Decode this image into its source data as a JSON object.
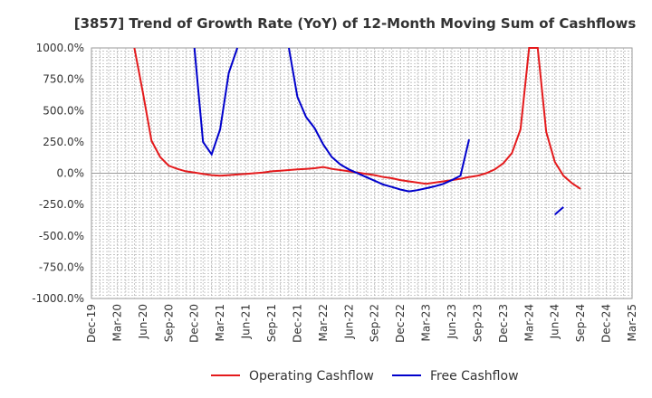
{
  "chart_data": {
    "type": "line",
    "title": "[3857]  Trend of Growth Rate (YoY) of 12-Month Moving Sum of Cashflows",
    "xlabel": "",
    "ylabel": "",
    "ylim": [
      -1000,
      1000
    ],
    "y_ticks": [
      "1000.0%",
      "750.0%",
      "500.0%",
      "250.0%",
      "0.0%",
      "-250.0%",
      "-500.0%",
      "-750.0%",
      "-1000.0%"
    ],
    "y_tick_values": [
      1000,
      750,
      500,
      250,
      0,
      -250,
      -500,
      -750,
      -1000
    ],
    "x_ticks": [
      "Dec-19",
      "Mar-20",
      "Jun-20",
      "Sep-20",
      "Dec-20",
      "Mar-21",
      "Jun-21",
      "Sep-21",
      "Dec-21",
      "Mar-22",
      "Jun-22",
      "Sep-22",
      "Dec-22",
      "Mar-23",
      "Jun-23",
      "Sep-23",
      "Dec-23",
      "Mar-24",
      "Jun-24",
      "Sep-24",
      "Dec-24",
      "Mar-25"
    ],
    "grid": true,
    "legend_position": "bottom",
    "series": [
      {
        "name": "Operating Cashflow",
        "color": "#e41a1c",
        "x": [
          "Dec-19",
          "Jan-20",
          "Feb-20",
          "Mar-20",
          "Apr-20",
          "May-20",
          "Jun-20",
          "Jul-20",
          "Aug-20",
          "Sep-20",
          "Oct-20",
          "Nov-20",
          "Dec-20",
          "Jan-21",
          "Feb-21",
          "Mar-21",
          "Apr-21",
          "May-21",
          "Jun-21",
          "Jul-21",
          "Aug-21",
          "Sep-21",
          "Oct-21",
          "Nov-21",
          "Dec-21",
          "Jan-22",
          "Feb-22",
          "Mar-22",
          "Apr-22",
          "May-22",
          "Jun-22",
          "Jul-22",
          "Aug-22",
          "Sep-22",
          "Oct-22",
          "Nov-22",
          "Dec-22",
          "Jan-23",
          "Feb-23",
          "Mar-23",
          "Apr-23",
          "May-23",
          "Jun-23",
          "Jul-23",
          "Aug-23",
          "Sep-23",
          "Oct-23",
          "Nov-23",
          "Dec-23",
          "Jan-24",
          "Feb-24",
          "Mar-24",
          "Apr-24",
          "May-24",
          "Jun-24",
          "Jul-24",
          "Aug-24",
          "Sep-24"
        ],
        "values": [
          null,
          null,
          null,
          null,
          null,
          1000,
          640,
          260,
          130,
          60,
          35,
          15,
          5,
          -5,
          -15,
          -20,
          -15,
          -10,
          -5,
          0,
          5,
          15,
          20,
          25,
          30,
          35,
          40,
          50,
          35,
          25,
          15,
          5,
          -5,
          -15,
          -30,
          -40,
          -55,
          -65,
          -75,
          -85,
          -75,
          -65,
          -55,
          -45,
          -30,
          -20,
          0,
          30,
          80,
          160,
          350,
          1000,
          1000,
          330,
          90,
          -20,
          -80,
          -125
        ],
        "segment_breaks_note": ""
      },
      {
        "name": "Free Cashflow",
        "color": "#0000cc",
        "x": [
          "Dec-19",
          "Jan-20",
          "Feb-20",
          "Mar-20",
          "Apr-20",
          "May-20",
          "Jun-20",
          "Jul-20",
          "Aug-20",
          "Sep-20",
          "Oct-20",
          "Nov-20",
          "Dec-20",
          "Jan-21",
          "Feb-21",
          "Mar-21",
          "Apr-21",
          "May-21",
          "Jun-21",
          "Jul-21",
          "Aug-21",
          "Sep-21",
          "Oct-21",
          "Nov-21",
          "Dec-21",
          "Jan-22",
          "Feb-22",
          "Mar-22",
          "Apr-22",
          "May-22",
          "Jun-22",
          "Jul-22",
          "Aug-22",
          "Sep-22",
          "Oct-22",
          "Nov-22",
          "Dec-22",
          "Jan-23",
          "Feb-23",
          "Mar-23",
          "Apr-23",
          "May-23",
          "Jun-23",
          "Jul-23",
          "Aug-23",
          "Sep-23",
          "Oct-23",
          "Nov-23",
          "Dec-23",
          "Jan-24",
          "Feb-24",
          "Mar-24",
          "Apr-24",
          "May-24",
          "Jun-24",
          "Jul-24",
          "Aug-24",
          "Sep-24"
        ],
        "values": [
          null,
          null,
          null,
          null,
          null,
          null,
          null,
          null,
          null,
          null,
          null,
          null,
          1000,
          250,
          150,
          350,
          800,
          1000,
          null,
          null,
          null,
          null,
          null,
          1000,
          610,
          450,
          360,
          230,
          130,
          70,
          30,
          0,
          -30,
          -60,
          -90,
          -110,
          -130,
          -145,
          -135,
          -120,
          -105,
          -85,
          -55,
          -20,
          270,
          null,
          null,
          null,
          null,
          null,
          null,
          null,
          null,
          null,
          -330,
          -270,
          null,
          null
        ],
        "plot_offsets": {
          "start_index": 0
        }
      }
    ]
  },
  "legend": {
    "items": [
      {
        "label": "Operating Cashflow",
        "color": "#e41a1c"
      },
      {
        "label": "Free Cashflow",
        "color": "#0000cc"
      }
    ]
  }
}
